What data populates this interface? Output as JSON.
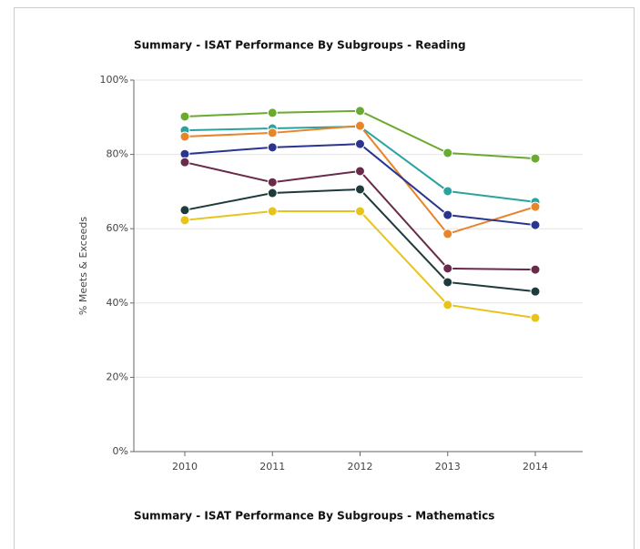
{
  "chart_data": {
    "type": "line",
    "title": "Summary - ISAT Performance By Subgroups - Reading",
    "next_title": "Summary - ISAT Performance By Subgroups - Mathematics",
    "y_label": "% Meets & Exceeds",
    "categories": [
      "2010",
      "2011",
      "2012",
      "2013",
      "2014"
    ],
    "ylim": [
      0,
      100
    ],
    "yticks": [
      {
        "value": 0,
        "label": "0%"
      },
      {
        "value": 20,
        "label": "20%"
      },
      {
        "value": 40,
        "label": "40%"
      },
      {
        "value": 60,
        "label": "60%"
      },
      {
        "value": 80,
        "label": "80%"
      },
      {
        "value": 100,
        "label": "100%"
      }
    ],
    "grid": true,
    "series": [
      {
        "color": "#6aaa2e",
        "values": [
          90.2,
          91.2,
          91.7,
          80.4,
          78.9
        ]
      },
      {
        "color": "#2aa3a0",
        "values": [
          86.5,
          87.0,
          87.5,
          70.1,
          67.2
        ]
      },
      {
        "color": "#e8842a",
        "values": [
          84.8,
          85.8,
          87.7,
          58.6,
          65.9
        ]
      },
      {
        "color": "#2a3590",
        "values": [
          80.1,
          81.9,
          82.8,
          63.7,
          61.0
        ]
      },
      {
        "color": "#6a2a4a",
        "values": [
          77.9,
          72.5,
          75.5,
          49.3,
          49.0
        ]
      },
      {
        "color": "#1f3a3a",
        "values": [
          65.0,
          69.6,
          70.6,
          45.6,
          43.1
        ]
      },
      {
        "color": "#e8c31a",
        "values": [
          62.3,
          64.7,
          64.7,
          39.5,
          36.0
        ]
      }
    ]
  }
}
